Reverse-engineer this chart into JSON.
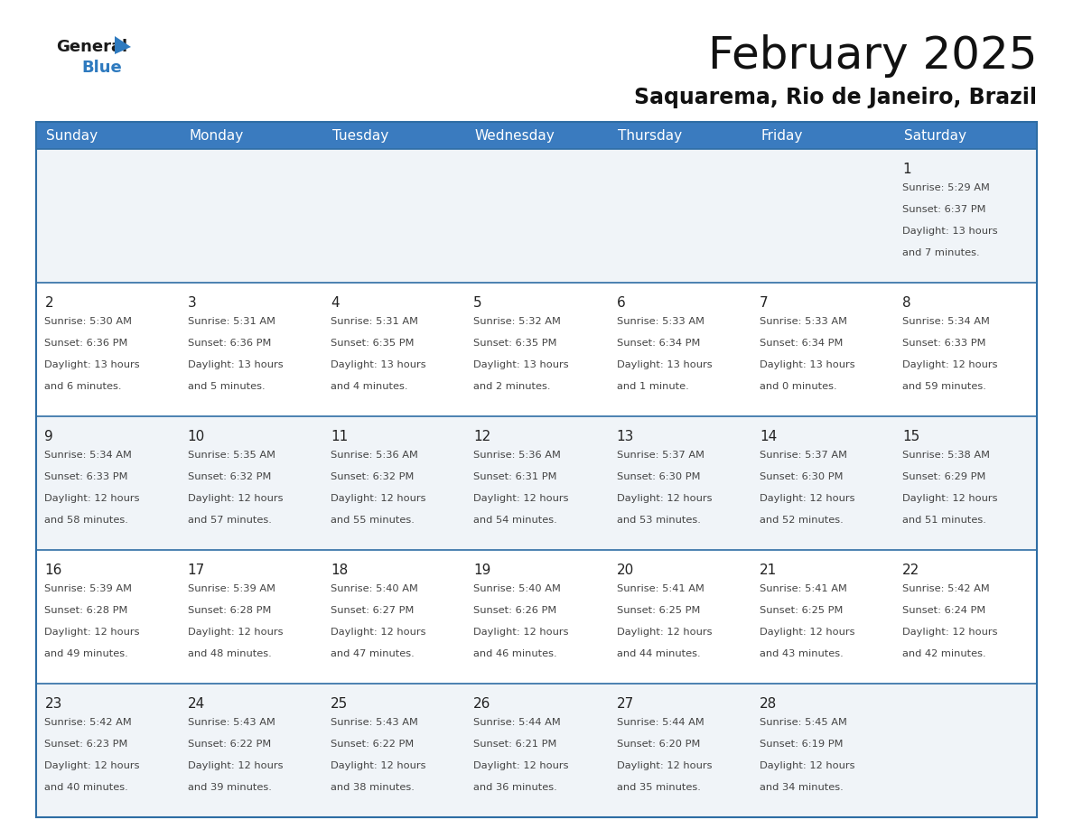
{
  "title": "February 2025",
  "subtitle": "Saquarema, Rio de Janeiro, Brazil",
  "header_bg_color": "#3a7bbf",
  "header_text_color": "#ffffff",
  "cell_bg_even": "#f0f4f8",
  "cell_bg_odd": "#ffffff",
  "border_color": "#2e6da4",
  "day_number_color": "#222222",
  "cell_text_color": "#444444",
  "days_of_week": [
    "Sunday",
    "Monday",
    "Tuesday",
    "Wednesday",
    "Thursday",
    "Friday",
    "Saturday"
  ],
  "logo_general_color": "#1a1a1a",
  "logo_blue_color": "#2e7abf",
  "title_fontsize": 36,
  "subtitle_fontsize": 17,
  "header_fontsize": 11,
  "day_number_fontsize": 11,
  "cell_text_fontsize": 8.2,
  "calendar": [
    [
      null,
      null,
      null,
      null,
      null,
      null,
      {
        "day": 1,
        "sunrise": "5:29 AM",
        "sunset": "6:37 PM",
        "daylight": "13 hours and 7 minutes."
      }
    ],
    [
      {
        "day": 2,
        "sunrise": "5:30 AM",
        "sunset": "6:36 PM",
        "daylight": "13 hours and 6 minutes."
      },
      {
        "day": 3,
        "sunrise": "5:31 AM",
        "sunset": "6:36 PM",
        "daylight": "13 hours and 5 minutes."
      },
      {
        "day": 4,
        "sunrise": "5:31 AM",
        "sunset": "6:35 PM",
        "daylight": "13 hours and 4 minutes."
      },
      {
        "day": 5,
        "sunrise": "5:32 AM",
        "sunset": "6:35 PM",
        "daylight": "13 hours and 2 minutes."
      },
      {
        "day": 6,
        "sunrise": "5:33 AM",
        "sunset": "6:34 PM",
        "daylight": "13 hours and 1 minute."
      },
      {
        "day": 7,
        "sunrise": "5:33 AM",
        "sunset": "6:34 PM",
        "daylight": "13 hours and 0 minutes."
      },
      {
        "day": 8,
        "sunrise": "5:34 AM",
        "sunset": "6:33 PM",
        "daylight": "12 hours and 59 minutes."
      }
    ],
    [
      {
        "day": 9,
        "sunrise": "5:34 AM",
        "sunset": "6:33 PM",
        "daylight": "12 hours and 58 minutes."
      },
      {
        "day": 10,
        "sunrise": "5:35 AM",
        "sunset": "6:32 PM",
        "daylight": "12 hours and 57 minutes."
      },
      {
        "day": 11,
        "sunrise": "5:36 AM",
        "sunset": "6:32 PM",
        "daylight": "12 hours and 55 minutes."
      },
      {
        "day": 12,
        "sunrise": "5:36 AM",
        "sunset": "6:31 PM",
        "daylight": "12 hours and 54 minutes."
      },
      {
        "day": 13,
        "sunrise": "5:37 AM",
        "sunset": "6:30 PM",
        "daylight": "12 hours and 53 minutes."
      },
      {
        "day": 14,
        "sunrise": "5:37 AM",
        "sunset": "6:30 PM",
        "daylight": "12 hours and 52 minutes."
      },
      {
        "day": 15,
        "sunrise": "5:38 AM",
        "sunset": "6:29 PM",
        "daylight": "12 hours and 51 minutes."
      }
    ],
    [
      {
        "day": 16,
        "sunrise": "5:39 AM",
        "sunset": "6:28 PM",
        "daylight": "12 hours and 49 minutes."
      },
      {
        "day": 17,
        "sunrise": "5:39 AM",
        "sunset": "6:28 PM",
        "daylight": "12 hours and 48 minutes."
      },
      {
        "day": 18,
        "sunrise": "5:40 AM",
        "sunset": "6:27 PM",
        "daylight": "12 hours and 47 minutes."
      },
      {
        "day": 19,
        "sunrise": "5:40 AM",
        "sunset": "6:26 PM",
        "daylight": "12 hours and 46 minutes."
      },
      {
        "day": 20,
        "sunrise": "5:41 AM",
        "sunset": "6:25 PM",
        "daylight": "12 hours and 44 minutes."
      },
      {
        "day": 21,
        "sunrise": "5:41 AM",
        "sunset": "6:25 PM",
        "daylight": "12 hours and 43 minutes."
      },
      {
        "day": 22,
        "sunrise": "5:42 AM",
        "sunset": "6:24 PM",
        "daylight": "12 hours and 42 minutes."
      }
    ],
    [
      {
        "day": 23,
        "sunrise": "5:42 AM",
        "sunset": "6:23 PM",
        "daylight": "12 hours and 40 minutes."
      },
      {
        "day": 24,
        "sunrise": "5:43 AM",
        "sunset": "6:22 PM",
        "daylight": "12 hours and 39 minutes."
      },
      {
        "day": 25,
        "sunrise": "5:43 AM",
        "sunset": "6:22 PM",
        "daylight": "12 hours and 38 minutes."
      },
      {
        "day": 26,
        "sunrise": "5:44 AM",
        "sunset": "6:21 PM",
        "daylight": "12 hours and 36 minutes."
      },
      {
        "day": 27,
        "sunrise": "5:44 AM",
        "sunset": "6:20 PM",
        "daylight": "12 hours and 35 minutes."
      },
      {
        "day": 28,
        "sunrise": "5:45 AM",
        "sunset": "6:19 PM",
        "daylight": "12 hours and 34 minutes."
      },
      null
    ]
  ]
}
